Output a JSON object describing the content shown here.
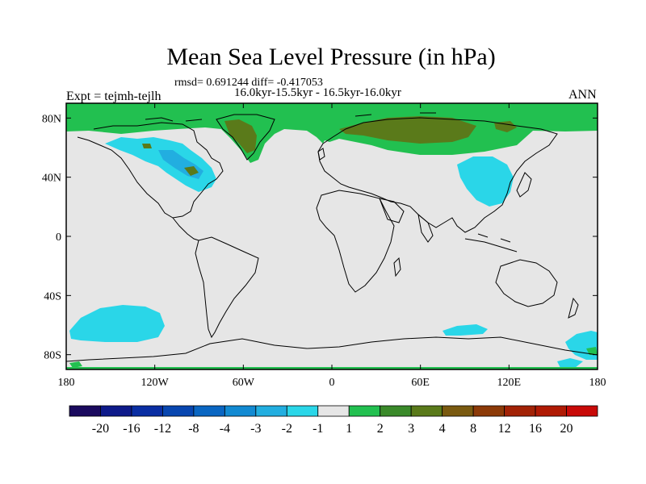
{
  "title": "Mean Sea Level Pressure (in hPa)",
  "stats_line": "rmsd= 0.691244 diff= -0.417053",
  "period_line": "16.0kyr-15.5kyr - 16.5kyr-16.0kyr",
  "left_label": "Expt = tejmh-tejlh",
  "right_label": "ANN",
  "map": {
    "projection": "cylindrical-equidistant",
    "lon_range": [
      -180,
      180
    ],
    "lat_range": [
      -90,
      90
    ],
    "lon_ticks": [
      "180",
      "120W",
      "60W",
      "0",
      "60E",
      "120E",
      "180"
    ],
    "lat_ticks": [
      "80N",
      "40N",
      "0",
      "40S",
      "80S"
    ],
    "background_color": "#e6e6e6",
    "coastline_color": "#000000"
  },
  "colorbar": {
    "labels": [
      "-20",
      "-16",
      "-12",
      "-8",
      "-4",
      "-3",
      "-2",
      "-1",
      "1",
      "2",
      "3",
      "4",
      "8",
      "12",
      "16",
      "20"
    ],
    "colors": [
      "#1a0a5e",
      "#0e1a8a",
      "#0a2ea3",
      "#0846b0",
      "#0a66c2",
      "#128ad2",
      "#22aee0",
      "#2ad6e8",
      "#e6e6e6",
      "#22c050",
      "#3a8a2a",
      "#5a7a1a",
      "#7a5a10",
      "#8c3a08",
      "#a22206",
      "#b01a04",
      "#c80a08"
    ]
  }
}
